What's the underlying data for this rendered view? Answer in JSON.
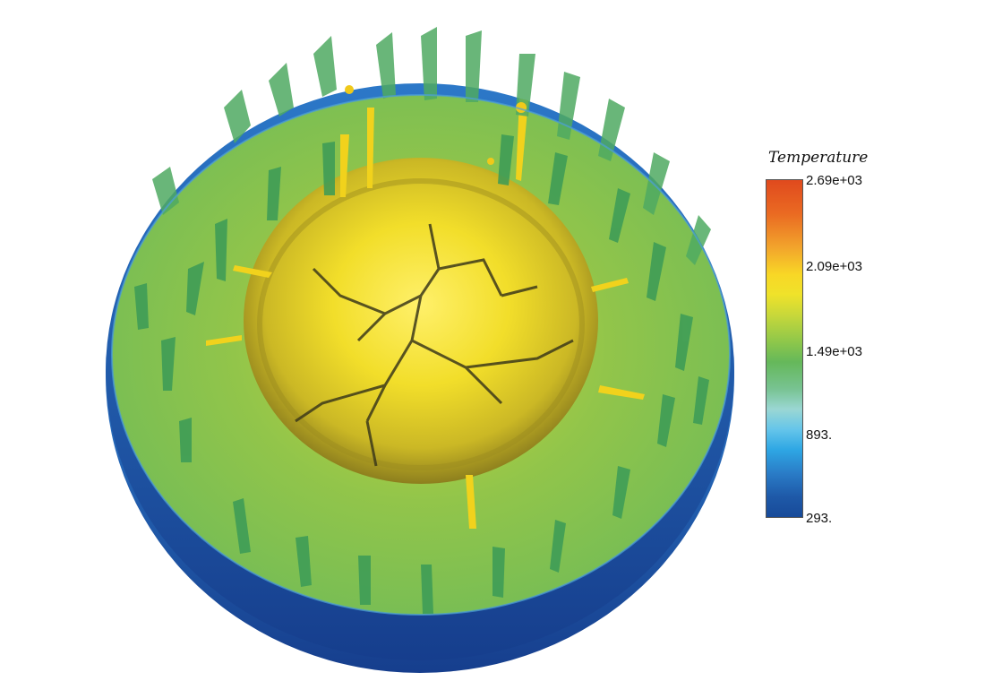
{
  "legend": {
    "title": "Temperature",
    "ticks": [
      "2.69e+03",
      "2.09e+03",
      "1.49e+03",
      "893.",
      "293."
    ]
  },
  "colors": {
    "mantle_green": "#7cc24a",
    "core_yellow": "#e8d21a",
    "plume_green": "#3f9f58",
    "outer_blue": "#1f4a99"
  }
}
